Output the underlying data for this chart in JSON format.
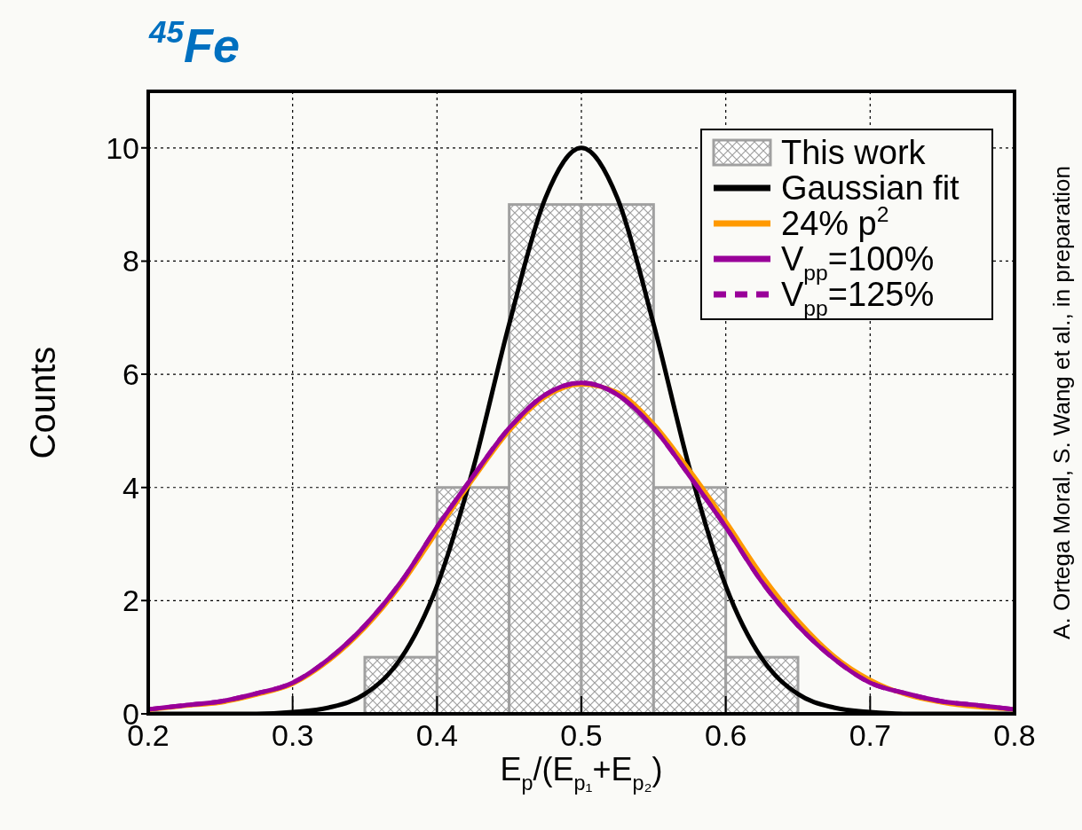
{
  "chart_data": {
    "type": "histogram",
    "title": "$^{45}$Fe",
    "xlabel": "E$_{p}$/(E$_{p₁}$+E$_{p₂}$)",
    "ylabel": "Counts",
    "annotations": [
      "A. Ortega Moral, S. Wang et al., in preparation"
    ],
    "xlim": [
      0.2,
      0.8
    ],
    "xticks": [
      0.2,
      0.3,
      0.4,
      0.5,
      0.6,
      0.7,
      0.8
    ],
    "ylim": [
      0,
      11
    ],
    "yticks": [
      0,
      2,
      4,
      6,
      8,
      10
    ],
    "grid": true,
    "legend": "top right",
    "series": [
      {
        "name": "This work",
        "color": "#a0a0a0",
        "bins": [
          0.35,
          0.4,
          0.45,
          0.5,
          0.55,
          0.6,
          0.65
        ],
        "values": [
          1,
          4,
          9,
          9,
          4,
          1
        ]
      },
      {
        "name": "Gaussian fit",
        "type": "line",
        "color": "#000000",
        "line_style": "solid",
        "x": [
          0.2,
          0.25,
          0.275,
          0.3,
          0.325,
          0.35,
          0.375,
          0.4,
          0.425,
          0.45,
          0.475,
          0.5,
          0.525,
          0.55,
          0.575,
          0.6,
          0.625,
          0.65,
          0.675,
          0.7,
          0.725,
          0.75,
          0.8
        ],
        "values": [
          0,
          0,
          0,
          0.03,
          0.11,
          0.35,
          0.98,
          2.26,
          4.33,
          6.89,
          9.11,
          10,
          9.11,
          6.89,
          4.33,
          2.26,
          0.98,
          0.35,
          0.11,
          0.03,
          0,
          0,
          0
        ]
      },
      {
        "name": "24% p$^{2}$",
        "type": "line",
        "color": "#ff9900",
        "line_style": "solid",
        "x": [
          0.2,
          0.225,
          0.25,
          0.275,
          0.3,
          0.325,
          0.35,
          0.375,
          0.4,
          0.425,
          0.45,
          0.475,
          0.5,
          0.525,
          0.55,
          0.575,
          0.6,
          0.625,
          0.65,
          0.675,
          0.7,
          0.725,
          0.75,
          0.775,
          0.8
        ],
        "values": [
          0.07,
          0.14,
          0.2,
          0.34,
          0.53,
          0.94,
          1.52,
          2.28,
          3.22,
          4.15,
          5.0,
          5.6,
          5.82,
          5.68,
          5.12,
          4.3,
          3.4,
          2.45,
          1.65,
          1.02,
          0.6,
          0.34,
          0.2,
          0.12,
          0.08
        ]
      },
      {
        "name": "V$_{pp}$=100%",
        "type": "line",
        "color": "#990099",
        "line_style": "solid",
        "x": [
          0.2,
          0.225,
          0.25,
          0.275,
          0.3,
          0.325,
          0.35,
          0.375,
          0.4,
          0.425,
          0.45,
          0.475,
          0.5,
          0.525,
          0.55,
          0.575,
          0.6,
          0.625,
          0.65,
          0.675,
          0.7,
          0.725,
          0.75,
          0.775,
          0.8
        ],
        "values": [
          0.08,
          0.15,
          0.22,
          0.36,
          0.55,
          0.97,
          1.56,
          2.33,
          3.3,
          4.2,
          5.05,
          5.64,
          5.85,
          5.64,
          5.05,
          4.2,
          3.3,
          2.33,
          1.56,
          0.97,
          0.55,
          0.36,
          0.22,
          0.15,
          0.08
        ]
      },
      {
        "name": "V$_{pp}$=125%",
        "type": "line",
        "color": "#990099",
        "line_style": "dashed",
        "x": [
          0.2,
          0.225,
          0.25,
          0.275,
          0.3,
          0.325,
          0.35,
          0.375,
          0.4,
          0.425,
          0.45,
          0.475,
          0.5,
          0.525,
          0.55,
          0.575,
          0.6,
          0.625,
          0.65,
          0.675,
          0.7,
          0.725,
          0.75,
          0.775,
          0.8
        ],
        "values": [
          0.08,
          0.15,
          0.22,
          0.36,
          0.55,
          0.97,
          1.56,
          2.33,
          3.3,
          4.2,
          5.05,
          5.64,
          5.85,
          5.64,
          5.05,
          4.2,
          3.3,
          2.33,
          1.56,
          0.97,
          0.55,
          0.36,
          0.22,
          0.15,
          0.08
        ]
      }
    ]
  }
}
